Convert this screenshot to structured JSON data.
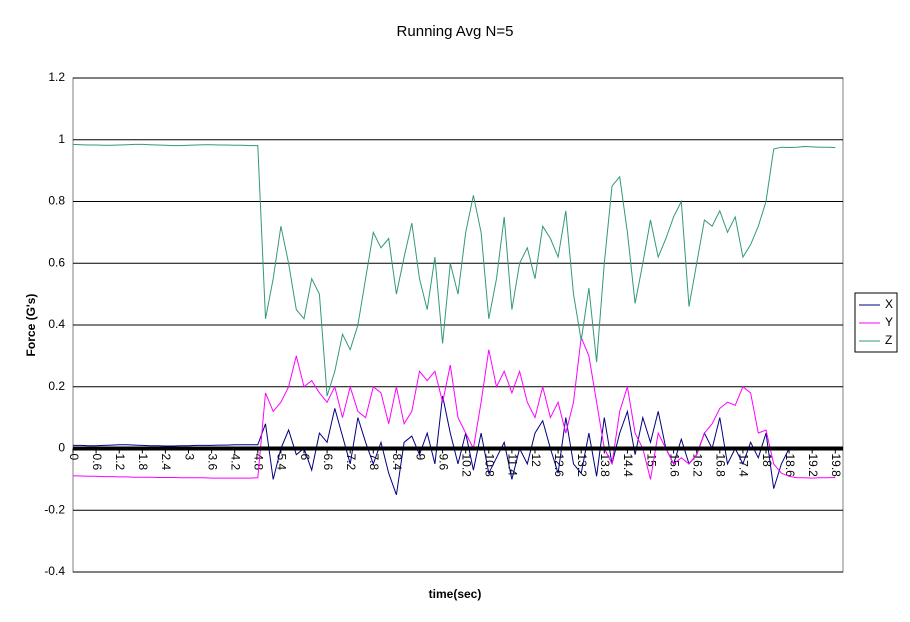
{
  "chart_data": {
    "type": "line",
    "title": "Running Avg N=5",
    "x_label": "time(sec)",
    "y_label": "Force (G's)",
    "x": [
      0,
      0.2,
      0.4,
      0.6,
      0.8,
      1,
      1.2,
      1.4,
      1.6,
      1.8,
      2,
      2.2,
      2.4,
      2.6,
      2.8,
      3,
      3.2,
      3.4,
      3.6,
      3.8,
      4,
      4.2,
      4.4,
      4.6,
      4.8,
      5,
      5.2,
      5.4,
      5.6,
      5.8,
      6,
      6.2,
      6.4,
      6.6,
      6.8,
      7,
      7.2,
      7.4,
      7.6,
      7.8,
      8,
      8.2,
      8.4,
      8.6,
      8.8,
      9,
      9.2,
      9.4,
      9.6,
      9.8,
      10,
      10.2,
      10.4,
      10.6,
      10.8,
      11,
      11.2,
      11.4,
      11.6,
      11.8,
      12,
      12.2,
      12.4,
      12.6,
      12.8,
      13,
      13.2,
      13.4,
      13.6,
      13.8,
      14,
      14.2,
      14.4,
      14.6,
      14.8,
      15,
      15.2,
      15.4,
      15.6,
      15.8,
      16,
      16.2,
      16.4,
      16.6,
      16.8,
      17,
      17.2,
      17.4,
      17.6,
      17.8,
      18,
      18.2,
      18.4,
      18.6,
      18.8,
      19,
      19.2,
      19.4,
      19.6,
      19.8
    ],
    "series": [
      {
        "name": "X",
        "color": "#000080",
        "values": [
          0.01,
          0.01,
          0.009,
          0.009,
          0.01,
          0.011,
          0.012,
          0.012,
          0.011,
          0.01,
          0.009,
          0.009,
          0.008,
          0.008,
          0.009,
          0.009,
          0.01,
          0.01,
          0.01,
          0.011,
          0.011,
          0.012,
          0.012,
          0.012,
          0.012,
          0.08,
          -0.1,
          0,
          0.06,
          -0.02,
          0,
          -0.07,
          0.05,
          0.02,
          0.13,
          0.04,
          -0.05,
          0.1,
          0.02,
          -0.05,
          0.02,
          -0.08,
          -0.15,
          0.02,
          0.04,
          -0.02,
          0.05,
          -0.05,
          0.17,
          0.05,
          -0.05,
          0.05,
          -0.07,
          0.05,
          -0.08,
          -0.03,
          0.02,
          -0.1,
          0,
          -0.05,
          0.05,
          0.09,
          0,
          -0.08,
          0.1,
          -0.05,
          -0.08,
          0.05,
          -0.09,
          0.1,
          -0.05,
          0.05,
          0.12,
          -0.02,
          0.1,
          0.02,
          0.12,
          0,
          -0.05,
          0.03,
          -0.05,
          -0.02,
          0.05,
          0,
          0.1,
          -0.05,
          0,
          -0.05,
          0.02,
          -0.03,
          0.05,
          -0.13,
          -0.05,
          0,
          0.005,
          0.005,
          0.005,
          0.005,
          0.005,
          0.005
        ]
      },
      {
        "name": "Y",
        "color": "#ff00ff",
        "values": [
          -0.088,
          -0.089,
          -0.09,
          -0.09,
          -0.091,
          -0.091,
          -0.092,
          -0.092,
          -0.093,
          -0.093,
          -0.093,
          -0.094,
          -0.094,
          -0.094,
          -0.095,
          -0.095,
          -0.095,
          -0.095,
          -0.096,
          -0.096,
          -0.096,
          -0.096,
          -0.096,
          -0.096,
          -0.095,
          0.18,
          0.12,
          0.15,
          0.2,
          0.3,
          0.2,
          0.22,
          0.18,
          0.15,
          0.2,
          0.1,
          0.2,
          0.12,
          0.1,
          0.2,
          0.18,
          0.08,
          0.2,
          0.08,
          0.12,
          0.25,
          0.22,
          0.25,
          0.15,
          0.27,
          0.1,
          0.05,
          0,
          0.15,
          0.32,
          0.2,
          0.25,
          0.18,
          0.25,
          0.15,
          0.1,
          0.2,
          0.1,
          0.15,
          0.05,
          0.15,
          0.36,
          0.3,
          0.15,
          0,
          -0.05,
          0.12,
          0.2,
          0.05,
          0,
          -0.1,
          0.05,
          0,
          -0.05,
          -0.03,
          -0.05,
          -0.02,
          0.05,
          0.08,
          0.13,
          0.15,
          0.14,
          0.2,
          0.18,
          0.05,
          0.06,
          -0.05,
          -0.08,
          -0.09,
          -0.095,
          -0.095,
          -0.096,
          -0.095,
          -0.095,
          -0.094
        ]
      },
      {
        "name": "Z",
        "color": "#339977",
        "values": [
          0.985,
          0.984,
          0.983,
          0.983,
          0.982,
          0.982,
          0.983,
          0.984,
          0.985,
          0.985,
          0.984,
          0.983,
          0.982,
          0.981,
          0.981,
          0.982,
          0.983,
          0.984,
          0.984,
          0.983,
          0.983,
          0.982,
          0.982,
          0.981,
          0.981,
          0.42,
          0.55,
          0.72,
          0.6,
          0.45,
          0.42,
          0.55,
          0.5,
          0.17,
          0.25,
          0.37,
          0.32,
          0.4,
          0.55,
          0.7,
          0.65,
          0.68,
          0.5,
          0.62,
          0.73,
          0.55,
          0.45,
          0.62,
          0.34,
          0.6,
          0.5,
          0.7,
          0.82,
          0.7,
          0.42,
          0.55,
          0.75,
          0.45,
          0.6,
          0.65,
          0.55,
          0.72,
          0.68,
          0.62,
          0.77,
          0.5,
          0.35,
          0.52,
          0.28,
          0.6,
          0.85,
          0.88,
          0.7,
          0.47,
          0.6,
          0.74,
          0.62,
          0.68,
          0.75,
          0.8,
          0.46,
          0.6,
          0.74,
          0.72,
          0.77,
          0.7,
          0.75,
          0.62,
          0.66,
          0.72,
          0.8,
          0.97,
          0.976,
          0.975,
          0.976,
          0.978,
          0.977,
          0.976,
          0.976,
          0.975
        ]
      }
    ],
    "xlim": [
      0,
      20
    ],
    "xticks": [
      0,
      0.6,
      1.2,
      1.8,
      2.4,
      3,
      3.6,
      4.2,
      4.8,
      5.4,
      6,
      6.6,
      7.2,
      7.8,
      8.4,
      9,
      9.6,
      10.2,
      10.8,
      11.4,
      12,
      12.6,
      13.2,
      13.8,
      14.4,
      15,
      15.6,
      16.2,
      16.8,
      17.4,
      18,
      18.6,
      19.2,
      19.8
    ],
    "ylim": [
      -0.4,
      1.2
    ],
    "yticks": [
      -0.4,
      -0.2,
      0,
      0.2,
      0.4,
      0.6,
      0.8,
      1,
      1.2
    ],
    "grid": true,
    "legend": "right"
  }
}
